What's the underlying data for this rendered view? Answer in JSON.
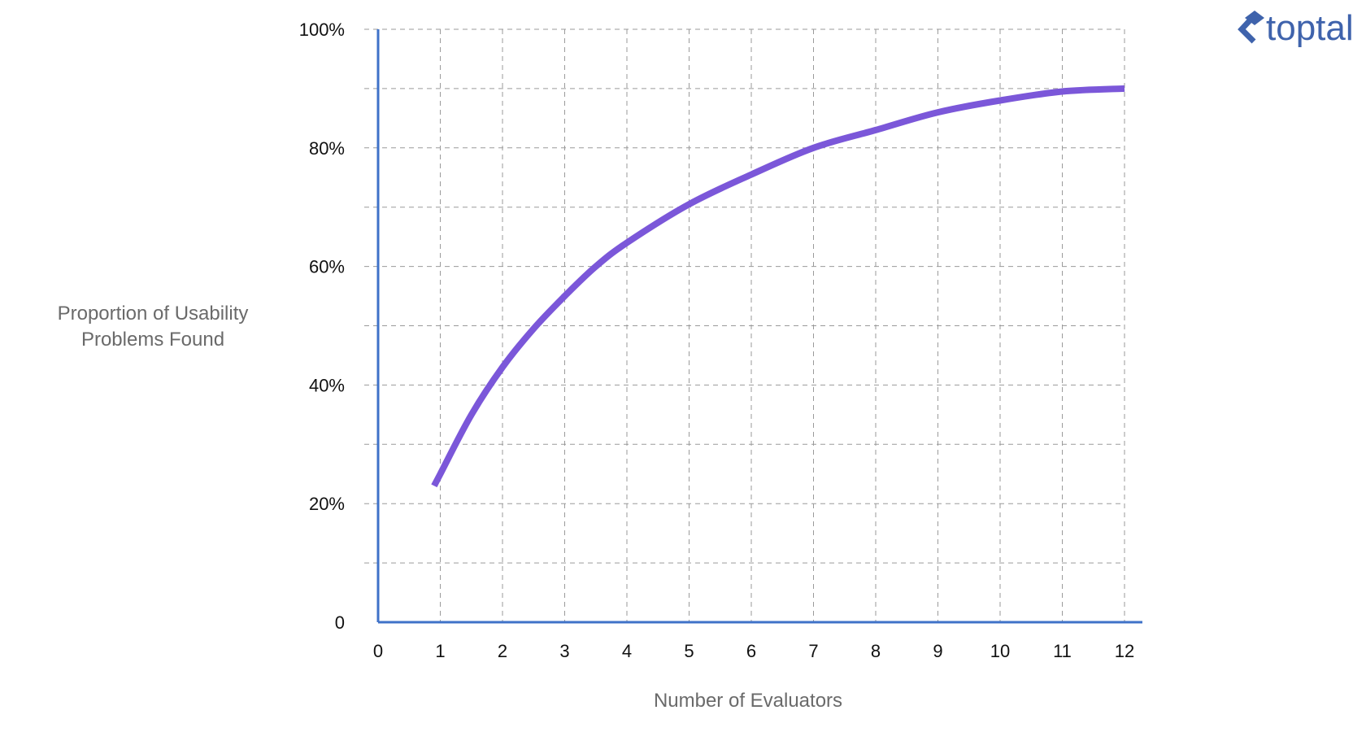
{
  "brand": {
    "logo_text": "toptal",
    "logo_icon": "toptal-chevron-icon",
    "color": "#3f63ac"
  },
  "colors": {
    "axis": "#3f72c8",
    "grid": "#9a9a9a",
    "curve": "#7b57d9"
  },
  "chart_data": {
    "type": "line",
    "title": "",
    "xlabel": "Number of Evaluators",
    "ylabel_lines": [
      "Proportion of Usability",
      "Problems Found"
    ],
    "xlim": [
      0,
      12
    ],
    "ylim": [
      0,
      100
    ],
    "x_ticks": [
      0,
      1,
      2,
      3,
      4,
      5,
      6,
      7,
      8,
      9,
      10,
      11,
      12
    ],
    "x_tick_labels": [
      "0",
      "1",
      "2",
      "3",
      "4",
      "5",
      "6",
      "7",
      "8",
      "9",
      "10",
      "11",
      "12"
    ],
    "y_ticks": [
      0,
      20,
      40,
      60,
      80,
      100
    ],
    "y_tick_labels": [
      "0",
      "20%",
      "40%",
      "60%",
      "80%",
      "100%"
    ],
    "y_grid_step": 10,
    "grid": true,
    "grid_style": "dashed",
    "series": [
      {
        "x": [
          0.9,
          1,
          1.5,
          2,
          2.5,
          3,
          3.5,
          4,
          5,
          6,
          7,
          8,
          9,
          10,
          11,
          12
        ],
        "y": [
          23,
          25,
          35,
          43,
          49.5,
          55,
          60,
          64,
          70.5,
          75.5,
          80,
          83,
          86,
          88,
          89.5,
          90
        ]
      }
    ]
  }
}
